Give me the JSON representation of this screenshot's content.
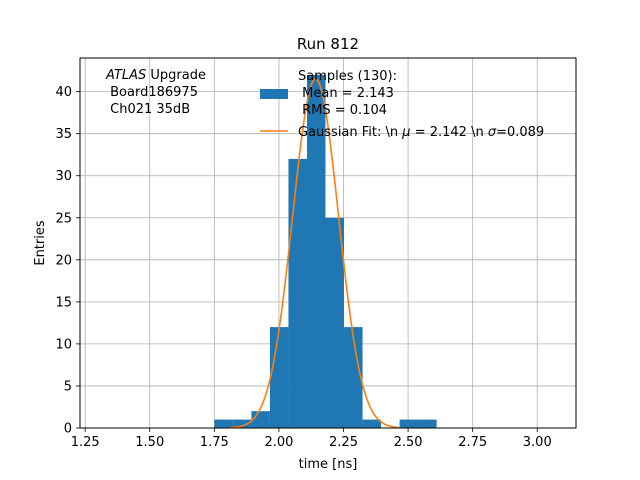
{
  "chart_data": {
    "type": "bar",
    "title": "Run 812",
    "xlabel": "time [ns]",
    "ylabel": "Entries",
    "xlim": [
      1.23,
      3.15
    ],
    "ylim": [
      0,
      44
    ],
    "x_ticks": [
      1.25,
      1.5,
      1.75,
      2.0,
      2.25,
      2.5,
      2.75,
      3.0
    ],
    "x_tick_labels": [
      "1.25",
      "1.50",
      "1.75",
      "2.00",
      "2.25",
      "2.50",
      "2.75",
      "3.00"
    ],
    "y_ticks": [
      0,
      5,
      10,
      15,
      20,
      25,
      30,
      35,
      40
    ],
    "y_tick_labels": [
      "0",
      "5",
      "10",
      "15",
      "20",
      "25",
      "30",
      "35",
      "40"
    ],
    "grid": true,
    "bin_width": 0.0717,
    "bins": [
      {
        "x0": 1.7501,
        "count": 1
      },
      {
        "x0": 1.8218,
        "count": 1
      },
      {
        "x0": 1.8935,
        "count": 2
      },
      {
        "x0": 1.9652,
        "count": 12
      },
      {
        "x0": 2.0369,
        "count": 32
      },
      {
        "x0": 2.1086,
        "count": 42
      },
      {
        "x0": 2.1803,
        "count": 25
      },
      {
        "x0": 2.252,
        "count": 12
      },
      {
        "x0": 2.3237,
        "count": 1
      },
      {
        "x0": 2.3954,
        "count": 0
      },
      {
        "x0": 2.4671,
        "count": 1
      },
      {
        "x0": 2.5388,
        "count": 1
      }
    ],
    "fit": {
      "mu": 2.142,
      "sigma": 0.089,
      "amplitude": 41.5,
      "x_range": [
        1.81,
        2.47
      ]
    },
    "colors": {
      "bars": "#1f77b4",
      "fit": "#ff7f0e",
      "grid": "#b0b0b0"
    },
    "legend_placement": "top-center",
    "legend": [
      {
        "kind": "patch",
        "lines": [
          "Samples (130):",
          " Mean = 2.143",
          " RMS = 0.104"
        ]
      },
      {
        "kind": "line",
        "lines": [
          "Gaussian Fit: \\n $\\mu$ = 2.142 \\n $\\sigma$=0.089"
        ],
        "display": [
          "Gaussian Fit: \\n ",
          "μ",
          " = 2.142 \\n ",
          "σ",
          "=0.089"
        ]
      }
    ],
    "annotation": {
      "lines": [
        "ATLAS Upgrade",
        " Board186975",
        " Ch021 35dB"
      ],
      "italic_word": "ATLAS"
    }
  }
}
